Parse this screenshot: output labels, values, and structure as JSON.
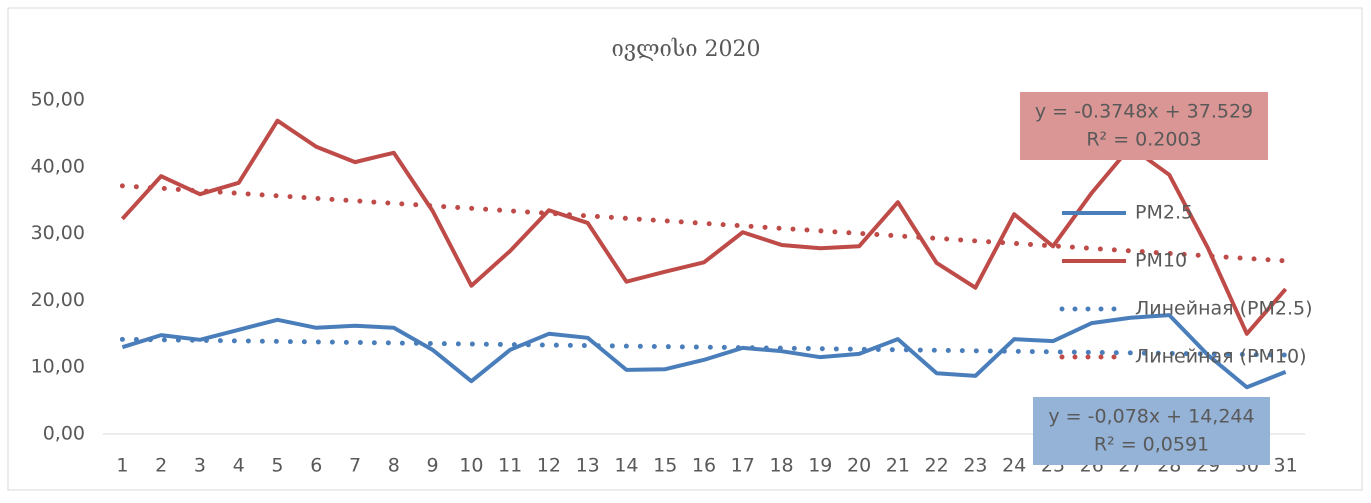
{
  "chart_data": {
    "type": "line",
    "title": "ივლისი 2020",
    "categories": [
      "1",
      "2",
      "3",
      "4",
      "5",
      "6",
      "7",
      "8",
      "9",
      "10",
      "11",
      "12",
      "13",
      "14",
      "15",
      "16",
      "17",
      "18",
      "19",
      "20",
      "21",
      "22",
      "23",
      "24",
      "25",
      "26",
      "27",
      "28",
      "29",
      "30",
      "31"
    ],
    "series": [
      {
        "name": "PM2.5",
        "color": "#4a7ebb",
        "values": [
          13.0,
          14.8,
          14.1,
          15.6,
          17.1,
          15.9,
          16.2,
          15.9,
          12.6,
          7.9,
          12.6,
          15.0,
          14.4,
          9.6,
          9.7,
          11.1,
          12.9,
          12.4,
          11.5,
          12.0,
          14.2,
          9.1,
          8.7,
          14.2,
          13.9,
          16.6,
          17.4,
          17.8,
          11.8,
          7.0,
          9.3
        ]
      },
      {
        "name": "PM10",
        "color": "#be4b48",
        "values": [
          32.2,
          38.6,
          35.9,
          37.6,
          46.9,
          43.0,
          40.7,
          42.1,
          33.4,
          22.2,
          27.4,
          33.5,
          31.6,
          22.8,
          24.3,
          25.7,
          30.2,
          28.3,
          27.8,
          28.1,
          34.7,
          25.6,
          21.9,
          32.9,
          28.1,
          36.1,
          43.0,
          38.8,
          27.8,
          15.0,
          21.7
        ]
      }
    ],
    "trendlines": [
      {
        "name": "Линейная (PM2.5)",
        "color": "#4a7ebb",
        "x": [
          1,
          31
        ],
        "values": [
          14.17,
          11.83
        ],
        "equation": "y = -0,078x + 14,244",
        "r2": "R² = 0,0591",
        "box_color": "#95b3d7"
      },
      {
        "name": "Линейная (PM10)",
        "color": "#be4b48",
        "x": [
          1,
          31
        ],
        "values": [
          37.15,
          25.91
        ],
        "equation": "y = -0.3748x + 37.529",
        "r2": "R² = 0.2003",
        "box_color": "#da9694"
      }
    ],
    "ylim": [
      0,
      50
    ],
    "yticks": [
      {
        "value": 0,
        "label": "0,00"
      },
      {
        "value": 10,
        "label": "10,00"
      },
      {
        "value": 20,
        "label": "20,00"
      },
      {
        "value": 30,
        "label": "30,00"
      },
      {
        "value": 40,
        "label": "40,00"
      },
      {
        "value": 50,
        "label": "50,00"
      }
    ],
    "grid": false,
    "legend": "right"
  }
}
